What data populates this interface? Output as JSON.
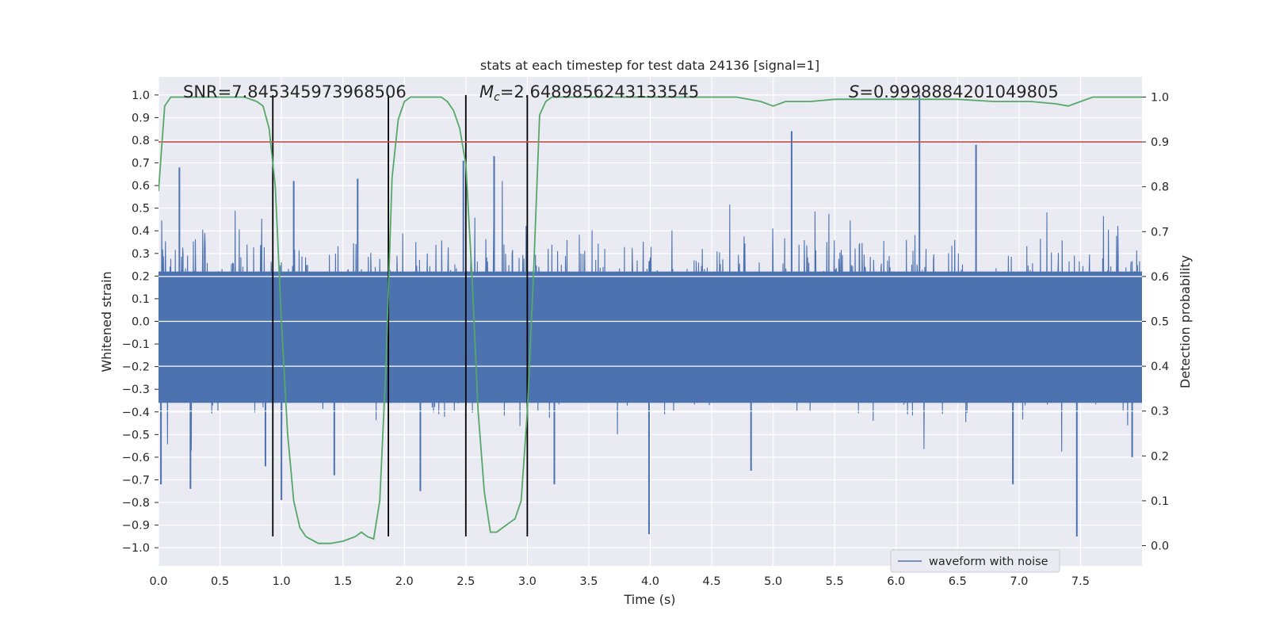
{
  "chart_data": {
    "type": "line",
    "title": "stats at each timestep for test data 24136 [signal=1]",
    "xlabel": "Time (s)",
    "ylabel": "Whitened strain",
    "ylabel_right": "Detection probability",
    "xlim": [
      0.0,
      8.0
    ],
    "ylim": [
      -1.08,
      1.08
    ],
    "ylim_right": [
      -0.045,
      1.045
    ],
    "x_ticks": [
      "0.0",
      "0.5",
      "1.0",
      "1.5",
      "2.0",
      "2.5",
      "3.0",
      "3.5",
      "4.0",
      "4.5",
      "5.0",
      "5.5",
      "6.0",
      "6.5",
      "7.0",
      "7.5"
    ],
    "y_ticks": [
      "1.0",
      "0.9",
      "0.8",
      "0.7",
      "0.6",
      "0.5",
      "0.4",
      "0.3",
      "0.2",
      "0.1",
      "0.0",
      "-0.1",
      "-0.2",
      "-0.3",
      "-0.4",
      "-0.5",
      "-0.6",
      "-0.7",
      "-0.8",
      "-0.9",
      "-1.0"
    ],
    "y_ticks_right": [
      "1.0",
      "0.9",
      "0.8",
      "0.7",
      "0.6",
      "0.5",
      "0.4",
      "0.3",
      "0.2",
      "0.1",
      "0.0"
    ],
    "grid": true,
    "legend": {
      "position": "bottom-right",
      "entries": [
        "waveform with noise"
      ]
    },
    "annotations": {
      "snr": "SNR=7.845345973968506",
      "mc_symbol": "M",
      "mc_subscript": "c",
      "mc_value": "=2.6489856243133545",
      "s_symbol": "S",
      "s_value": "=0.9998884201049805"
    },
    "threshold": 0.9,
    "vertical_lines_s": [
      0.93,
      1.87,
      2.5,
      3.0
    ],
    "colors": {
      "waveform": "#4c72b0",
      "probability": "#55a868",
      "threshold": "#c44e52",
      "vlines": "#000000",
      "background": "#eaeaf2",
      "grid": "#ffffff"
    },
    "series": [
      {
        "name": "Detection probability",
        "axis": "right",
        "x": [
          0.0,
          0.05,
          0.1,
          0.15,
          0.2,
          0.3,
          0.4,
          0.5,
          0.6,
          0.7,
          0.8,
          0.85,
          0.9,
          0.95,
          1.0,
          1.05,
          1.1,
          1.15,
          1.2,
          1.3,
          1.4,
          1.5,
          1.6,
          1.65,
          1.7,
          1.75,
          1.8,
          1.85,
          1.9,
          1.95,
          2.0,
          2.05,
          2.1,
          2.2,
          2.3,
          2.35,
          2.4,
          2.45,
          2.5,
          2.55,
          2.6,
          2.65,
          2.7,
          2.75,
          2.8,
          2.85,
          2.9,
          2.95,
          3.0,
          3.05,
          3.1,
          3.15,
          3.2,
          3.5,
          4.0,
          4.5,
          4.7,
          4.8,
          4.9,
          5.0,
          5.05,
          5.1,
          5.2,
          5.3,
          5.5,
          6.0,
          6.5,
          6.8,
          6.9,
          7.0,
          7.1,
          7.3,
          7.4,
          7.5,
          7.6,
          8.0
        ],
        "values": [
          0.79,
          0.98,
          1.0,
          1.0,
          1.0,
          1.0,
          1.0,
          1.0,
          1.0,
          1.0,
          0.99,
          0.98,
          0.93,
          0.8,
          0.5,
          0.25,
          0.1,
          0.04,
          0.02,
          0.005,
          0.005,
          0.01,
          0.02,
          0.03,
          0.02,
          0.015,
          0.1,
          0.4,
          0.82,
          0.95,
          0.99,
          1.0,
          1.0,
          1.0,
          1.0,
          0.99,
          0.97,
          0.93,
          0.85,
          0.6,
          0.3,
          0.12,
          0.03,
          0.03,
          0.04,
          0.05,
          0.06,
          0.1,
          0.3,
          0.6,
          0.96,
          0.99,
          1.0,
          1.0,
          1.0,
          1.0,
          1.0,
          0.995,
          0.99,
          0.98,
          0.985,
          0.99,
          0.99,
          0.99,
          0.995,
          0.995,
          0.995,
          0.99,
          0.99,
          0.99,
          0.99,
          0.985,
          0.98,
          0.99,
          1.0,
          1.0
        ]
      },
      {
        "name": "waveform with noise",
        "axis": "left",
        "note": "dense whitened-strain noise, roughly -0.4..0.4 with spikes",
        "spikes": [
          {
            "x": 0.02,
            "y": -0.72
          },
          {
            "x": 0.17,
            "y": 0.68
          },
          {
            "x": 0.26,
            "y": -0.74
          },
          {
            "x": 0.87,
            "y": -0.64
          },
          {
            "x": 1.0,
            "y": -0.79
          },
          {
            "x": 1.1,
            "y": 0.62
          },
          {
            "x": 1.43,
            "y": -0.68
          },
          {
            "x": 1.62,
            "y": 0.63
          },
          {
            "x": 2.13,
            "y": -0.75
          },
          {
            "x": 2.48,
            "y": 0.71
          },
          {
            "x": 2.73,
            "y": 0.73
          },
          {
            "x": 3.22,
            "y": -0.72
          },
          {
            "x": 3.99,
            "y": -0.94
          },
          {
            "x": 4.82,
            "y": -0.66
          },
          {
            "x": 5.15,
            "y": 0.84
          },
          {
            "x": 6.19,
            "y": 1.0
          },
          {
            "x": 6.65,
            "y": 0.78
          },
          {
            "x": 6.95,
            "y": -0.72
          },
          {
            "x": 7.47,
            "y": -0.95
          },
          {
            "x": 7.92,
            "y": -0.6
          }
        ]
      }
    ]
  }
}
